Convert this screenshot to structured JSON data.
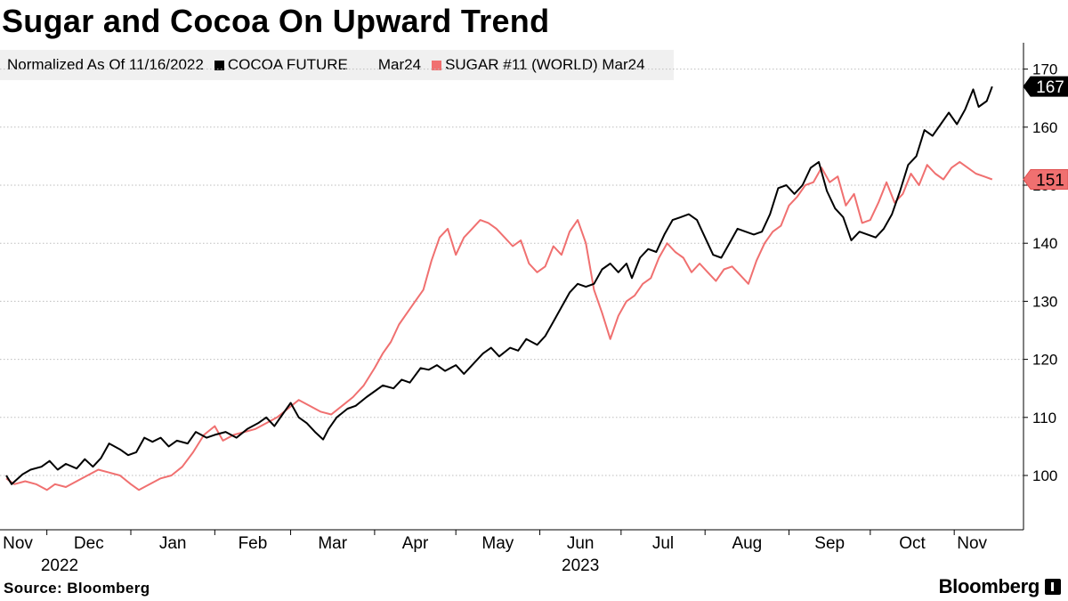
{
  "title": "Sugar and Cocoa On Upward Trend",
  "legend": {
    "note": "Normalized As Of 11/16/2022",
    "series": [
      {
        "name_a": "COCOA FUTURE",
        "name_b": "Mar24",
        "color": "#000000"
      },
      {
        "name_a": "SUGAR #11 (WORLD) Mar24",
        "name_b": "",
        "color": "#f07070"
      }
    ]
  },
  "source": "Source: Bloomberg",
  "brand": "Bloomberg",
  "chart_data": {
    "type": "line",
    "title": "Sugar and Cocoa On Upward Trend",
    "x_range": [
      "2022-11-16",
      "2023-11-20"
    ],
    "ylim": [
      95,
      171
    ],
    "y_ticks": [
      100,
      110,
      120,
      130,
      140,
      150,
      160,
      170
    ],
    "x_tick_labels": [
      {
        "label": "Nov",
        "year": "2022",
        "date": "2022-11-01"
      },
      {
        "label": "Dec",
        "year": "",
        "date": "2022-12-01"
      },
      {
        "label": "Jan",
        "year": "",
        "date": "2023-01-01"
      },
      {
        "label": "Feb",
        "year": "",
        "date": "2023-02-01"
      },
      {
        "label": "Mar",
        "year": "",
        "date": "2023-03-01"
      },
      {
        "label": "Apr",
        "year": "",
        "date": "2023-04-01"
      },
      {
        "label": "May",
        "year": "",
        "date": "2023-05-01"
      },
      {
        "label": "Jun",
        "year": "2023",
        "date": "2023-06-01"
      },
      {
        "label": "Jul",
        "year": "",
        "date": "2023-07-01"
      },
      {
        "label": "Aug",
        "year": "",
        "date": "2023-08-01"
      },
      {
        "label": "Sep",
        "year": "",
        "date": "2023-09-01"
      },
      {
        "label": "Oct",
        "year": "",
        "date": "2023-10-01"
      },
      {
        "label": "Nov",
        "year": "",
        "date": "2023-11-01"
      }
    ],
    "grid": true,
    "series": [
      {
        "name": "COCOA FUTURE Mar24",
        "color": "#000000",
        "last_label": "167",
        "points": [
          [
            "2022-11-16",
            100
          ],
          [
            "2022-11-18",
            98.5
          ],
          [
            "2022-11-22",
            100.2
          ],
          [
            "2022-11-25",
            101
          ],
          [
            "2022-11-29",
            101.5
          ],
          [
            "2022-12-02",
            102.5
          ],
          [
            "2022-12-05",
            101
          ],
          [
            "2022-12-08",
            102
          ],
          [
            "2022-12-12",
            101.2
          ],
          [
            "2022-12-15",
            102.8
          ],
          [
            "2022-12-18",
            101.5
          ],
          [
            "2022-12-21",
            103
          ],
          [
            "2022-12-24",
            105.5
          ],
          [
            "2022-12-28",
            104.5
          ],
          [
            "2022-12-31",
            103.5
          ],
          [
            "2023-01-03",
            104
          ],
          [
            "2023-01-06",
            106.5
          ],
          [
            "2023-01-09",
            105.8
          ],
          [
            "2023-01-12",
            106.5
          ],
          [
            "2023-01-15",
            105
          ],
          [
            "2023-01-18",
            106
          ],
          [
            "2023-01-22",
            105.5
          ],
          [
            "2023-01-25",
            107.5
          ],
          [
            "2023-01-29",
            106.5
          ],
          [
            "2023-02-01",
            107
          ],
          [
            "2023-02-05",
            107.5
          ],
          [
            "2023-02-09",
            106.5
          ],
          [
            "2023-02-13",
            108
          ],
          [
            "2023-02-17",
            109
          ],
          [
            "2023-02-20",
            110
          ],
          [
            "2023-02-23",
            108.5
          ],
          [
            "2023-02-26",
            110.5
          ],
          [
            "2023-03-01",
            112.5
          ],
          [
            "2023-03-04",
            110
          ],
          [
            "2023-03-07",
            109
          ],
          [
            "2023-03-10",
            107.5
          ],
          [
            "2023-03-13",
            106.2
          ],
          [
            "2023-03-15",
            108
          ],
          [
            "2023-03-18",
            110
          ],
          [
            "2023-03-22",
            111.5
          ],
          [
            "2023-03-25",
            112
          ],
          [
            "2023-03-29",
            113.5
          ],
          [
            "2023-04-01",
            114.5
          ],
          [
            "2023-04-04",
            115.5
          ],
          [
            "2023-04-08",
            115
          ],
          [
            "2023-04-11",
            116.5
          ],
          [
            "2023-04-14",
            116
          ],
          [
            "2023-04-18",
            118.5
          ],
          [
            "2023-04-21",
            118.2
          ],
          [
            "2023-04-24",
            119
          ],
          [
            "2023-04-27",
            118
          ],
          [
            "2023-05-01",
            119
          ],
          [
            "2023-05-04",
            117.5
          ],
          [
            "2023-05-07",
            119
          ],
          [
            "2023-05-11",
            121
          ],
          [
            "2023-05-14",
            122
          ],
          [
            "2023-05-17",
            120.5
          ],
          [
            "2023-05-21",
            122
          ],
          [
            "2023-05-24",
            121.5
          ],
          [
            "2023-05-27",
            123.5
          ],
          [
            "2023-05-31",
            122.5
          ],
          [
            "2023-06-03",
            124
          ],
          [
            "2023-06-06",
            126.5
          ],
          [
            "2023-06-09",
            129
          ],
          [
            "2023-06-12",
            131.5
          ],
          [
            "2023-06-15",
            133
          ],
          [
            "2023-06-18",
            132.5
          ],
          [
            "2023-06-21",
            133
          ],
          [
            "2023-06-24",
            135.5
          ],
          [
            "2023-06-27",
            136.5
          ],
          [
            "2023-06-30",
            135
          ],
          [
            "2023-07-03",
            136.5
          ],
          [
            "2023-07-05",
            134
          ],
          [
            "2023-07-08",
            137.5
          ],
          [
            "2023-07-11",
            139
          ],
          [
            "2023-07-14",
            138.5
          ],
          [
            "2023-07-17",
            141.5
          ],
          [
            "2023-07-20",
            144
          ],
          [
            "2023-07-23",
            144.5
          ],
          [
            "2023-07-26",
            145
          ],
          [
            "2023-07-29",
            144
          ],
          [
            "2023-08-01",
            141
          ],
          [
            "2023-08-04",
            138
          ],
          [
            "2023-08-07",
            137.5
          ],
          [
            "2023-08-10",
            140
          ],
          [
            "2023-08-13",
            142.5
          ],
          [
            "2023-08-16",
            142
          ],
          [
            "2023-08-19",
            141.5
          ],
          [
            "2023-08-22",
            142
          ],
          [
            "2023-08-25",
            145
          ],
          [
            "2023-08-28",
            149.5
          ],
          [
            "2023-08-31",
            150
          ],
          [
            "2023-09-03",
            148.5
          ],
          [
            "2023-09-06",
            150
          ],
          [
            "2023-09-09",
            153
          ],
          [
            "2023-09-12",
            154
          ],
          [
            "2023-09-15",
            149
          ],
          [
            "2023-09-18",
            146
          ],
          [
            "2023-09-21",
            144.5
          ],
          [
            "2023-09-24",
            140.5
          ],
          [
            "2023-09-27",
            142
          ],
          [
            "2023-09-30",
            141.5
          ],
          [
            "2023-10-03",
            141
          ],
          [
            "2023-10-06",
            142.5
          ],
          [
            "2023-10-09",
            145
          ],
          [
            "2023-10-12",
            149
          ],
          [
            "2023-10-15",
            153.5
          ],
          [
            "2023-10-18",
            155
          ],
          [
            "2023-10-21",
            159.5
          ],
          [
            "2023-10-24",
            158.5
          ],
          [
            "2023-10-27",
            160.5
          ],
          [
            "2023-10-30",
            162.5
          ],
          [
            "2023-11-02",
            160.5
          ],
          [
            "2023-11-05",
            163
          ],
          [
            "2023-11-08",
            166.5
          ],
          [
            "2023-11-10",
            163.5
          ],
          [
            "2023-11-13",
            164.5
          ],
          [
            "2023-11-15",
            167
          ]
        ]
      },
      {
        "name": "SUGAR #11 (WORLD) Mar24",
        "color": "#f07070",
        "last_label": "151",
        "points": [
          [
            "2022-11-16",
            99.5
          ],
          [
            "2022-11-19",
            98.5
          ],
          [
            "2022-11-23",
            99
          ],
          [
            "2022-11-27",
            98.5
          ],
          [
            "2022-12-01",
            97.5
          ],
          [
            "2022-12-04",
            98.5
          ],
          [
            "2022-12-08",
            98
          ],
          [
            "2022-12-12",
            99
          ],
          [
            "2022-12-16",
            100
          ],
          [
            "2022-12-20",
            101
          ],
          [
            "2022-12-24",
            100.5
          ],
          [
            "2022-12-28",
            100
          ],
          [
            "2023-01-01",
            98.5
          ],
          [
            "2023-01-04",
            97.5
          ],
          [
            "2023-01-08",
            98.5
          ],
          [
            "2023-01-12",
            99.5
          ],
          [
            "2023-01-16",
            100
          ],
          [
            "2023-01-20",
            101.5
          ],
          [
            "2023-01-24",
            104
          ],
          [
            "2023-01-28",
            107
          ],
          [
            "2023-02-01",
            108.5
          ],
          [
            "2023-02-04",
            106
          ],
          [
            "2023-02-08",
            107
          ],
          [
            "2023-02-12",
            107.5
          ],
          [
            "2023-02-16",
            108
          ],
          [
            "2023-02-20",
            109
          ],
          [
            "2023-02-24",
            110
          ],
          [
            "2023-02-28",
            111.5
          ],
          [
            "2023-03-04",
            113
          ],
          [
            "2023-03-08",
            112
          ],
          [
            "2023-03-12",
            111
          ],
          [
            "2023-03-16",
            110.5
          ],
          [
            "2023-03-20",
            112
          ],
          [
            "2023-03-24",
            113.5
          ],
          [
            "2023-03-28",
            115.5
          ],
          [
            "2023-04-01",
            118.5
          ],
          [
            "2023-04-04",
            121
          ],
          [
            "2023-04-07",
            123
          ],
          [
            "2023-04-10",
            126
          ],
          [
            "2023-04-13",
            128
          ],
          [
            "2023-04-16",
            130
          ],
          [
            "2023-04-19",
            132
          ],
          [
            "2023-04-22",
            137
          ],
          [
            "2023-04-25",
            141
          ],
          [
            "2023-04-28",
            142.5
          ],
          [
            "2023-05-01",
            138
          ],
          [
            "2023-05-04",
            141
          ],
          [
            "2023-05-07",
            142.5
          ],
          [
            "2023-05-10",
            144
          ],
          [
            "2023-05-13",
            143.5
          ],
          [
            "2023-05-16",
            142.5
          ],
          [
            "2023-05-19",
            141
          ],
          [
            "2023-05-22",
            139.5
          ],
          [
            "2023-05-25",
            140.5
          ],
          [
            "2023-05-28",
            136.5
          ],
          [
            "2023-05-31",
            135
          ],
          [
            "2023-06-03",
            136
          ],
          [
            "2023-06-06",
            139.5
          ],
          [
            "2023-06-09",
            138
          ],
          [
            "2023-06-12",
            142
          ],
          [
            "2023-06-15",
            144
          ],
          [
            "2023-06-18",
            140
          ],
          [
            "2023-06-21",
            132
          ],
          [
            "2023-06-24",
            128
          ],
          [
            "2023-06-27",
            123.5
          ],
          [
            "2023-06-30",
            127.5
          ],
          [
            "2023-07-03",
            130
          ],
          [
            "2023-07-06",
            131
          ],
          [
            "2023-07-09",
            133
          ],
          [
            "2023-07-12",
            134
          ],
          [
            "2023-07-15",
            137.5
          ],
          [
            "2023-07-18",
            140
          ],
          [
            "2023-07-21",
            138.5
          ],
          [
            "2023-07-24",
            137.5
          ],
          [
            "2023-07-27",
            135
          ],
          [
            "2023-07-30",
            136.5
          ],
          [
            "2023-08-02",
            135
          ],
          [
            "2023-08-05",
            133.5
          ],
          [
            "2023-08-08",
            135.5
          ],
          [
            "2023-08-11",
            136
          ],
          [
            "2023-08-14",
            134.5
          ],
          [
            "2023-08-17",
            133
          ],
          [
            "2023-08-20",
            137
          ],
          [
            "2023-08-23",
            140
          ],
          [
            "2023-08-26",
            142
          ],
          [
            "2023-08-29",
            143
          ],
          [
            "2023-09-01",
            146.5
          ],
          [
            "2023-09-04",
            148
          ],
          [
            "2023-09-07",
            150
          ],
          [
            "2023-09-10",
            150.5
          ],
          [
            "2023-09-13",
            153
          ],
          [
            "2023-09-16",
            150.5
          ],
          [
            "2023-09-19",
            151.5
          ],
          [
            "2023-09-22",
            146.5
          ],
          [
            "2023-09-25",
            148.5
          ],
          [
            "2023-09-28",
            143.5
          ],
          [
            "2023-10-01",
            144
          ],
          [
            "2023-10-04",
            147
          ],
          [
            "2023-10-07",
            150.5
          ],
          [
            "2023-10-10",
            147
          ],
          [
            "2023-10-13",
            148.5
          ],
          [
            "2023-10-16",
            152
          ],
          [
            "2023-10-19",
            150
          ],
          [
            "2023-10-22",
            153.5
          ],
          [
            "2023-10-25",
            152
          ],
          [
            "2023-10-28",
            151
          ],
          [
            "2023-10-31",
            153
          ],
          [
            "2023-11-03",
            154
          ],
          [
            "2023-11-06",
            153
          ],
          [
            "2023-11-09",
            152
          ],
          [
            "2023-11-12",
            151.5
          ],
          [
            "2023-11-15",
            151
          ]
        ]
      }
    ]
  }
}
